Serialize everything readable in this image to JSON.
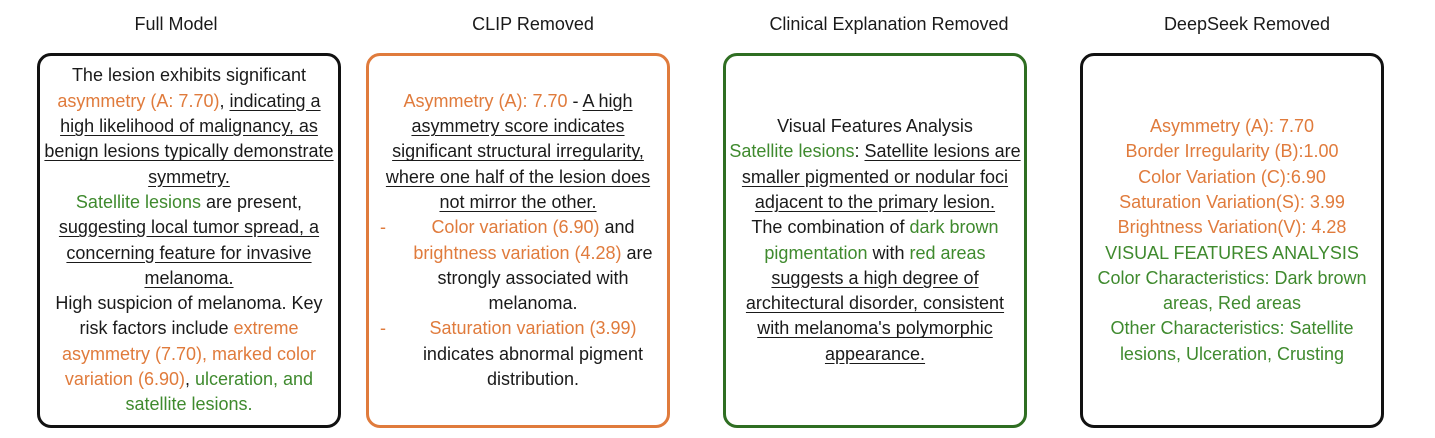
{
  "columns": {
    "full_model": {
      "title": "Full Model",
      "t1": "The lesion exhibits significant",
      "t2": "asymmetry (A: 7.70)",
      "t3": ", ",
      "t4": "indicating a high likelihood of malignancy, as benign lesions typically demonstrate symmetry.",
      "t5": "Satellite lesions",
      "t6": " are present,",
      "t7": "suggesting local tumor spread, a concerning feature for invasive melanoma.",
      "t8": "High suspicion of melanoma. Key risk factors include ",
      "t9": "extreme asymmetry (7.70), marked color variation (6.90)",
      "t10": ", ",
      "t11": "ulceration, and satellite lesions."
    },
    "clip_removed": {
      "title": "CLIP Removed",
      "t1": "Asymmetry (A): 7.70",
      "t2": " - ",
      "t3": "A high asymmetry score indicates significant structural irregularity, where one half of the lesion does not mirror the other.",
      "dash1": "-",
      "t4": "Color variation (6.90)",
      "t5": " and ",
      "t6": "brightness variation (4.28)",
      "t7": " are strongly associated with melanoma.",
      "dash2": "-",
      "t8": "Saturation variation (3.99)",
      "t9": "indicates abnormal pigment distribution."
    },
    "clinical_removed": {
      "title": "Clinical Explanation Removed",
      "t1": "Visual Features Analysis",
      "t2": "Satellite lesions",
      "t3": ": ",
      "t4": "Satellite lesions are smaller pigmented or nodular foci adjacent to the primary lesion.",
      "t5": "The combination of ",
      "t6": "dark brown pigmentation",
      "t7": " with ",
      "t8": "red areas",
      "t9": "suggests a high degree of architectural disorder, consistent with melanoma's polymorphic appearance."
    },
    "deepseek_removed": {
      "title": "DeepSeek Removed",
      "lines": [
        "Asymmetry (A): 7.70",
        "Border Irregularity (B):1.00",
        "Color Variation (C):6.90",
        "Saturation Variation(S): 3.99",
        "Brightness Variation(V): 4.28"
      ],
      "g1": "VISUAL FEATURES ANALYSIS",
      "g2": "Color Characteristics: Dark brown areas, Red areas",
      "g3": "Other Characteristics: Satellite lesions, Ulceration, Crusting"
    }
  },
  "colors": {
    "orange": "#e07b3c",
    "green": "#3f8a2e",
    "black": "#111111",
    "dark_green_border": "#2f6e22"
  }
}
